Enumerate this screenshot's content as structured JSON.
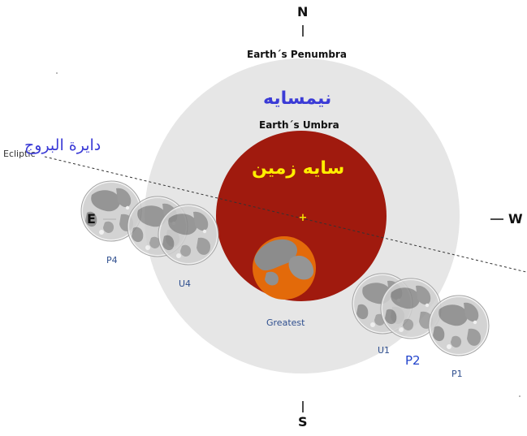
{
  "compass": {
    "north": "N",
    "south": "S",
    "east": "E",
    "west": "W"
  },
  "zones": {
    "penumbra_label": "Earth´s Penumbra",
    "penumbra_label_fa": "نیمسایه",
    "umbra_label": "Earth´s Umbra",
    "umbra_label_fa": "سایه زمین"
  },
  "ecliptic": {
    "label": "Ecliptic",
    "label_fa": "دایرة البروج"
  },
  "moon_positions": {
    "p4": "P4",
    "u4": "U4",
    "greatest": "Greatest",
    "u1": "U1",
    "p2": "P2",
    "p1": "P1"
  },
  "colors": {
    "penumbra": "#e6e6e6",
    "umbra": "#a01a0e",
    "greatest_moon": "#e36a0a",
    "center_mark": "#f7e000",
    "persian_blue": "#3b3bd6",
    "persian_yellow": "#ffee00",
    "phase_label": "#2f4f8f",
    "moon_light": "#d6d6d6",
    "moon_dark": "#7a7a7a"
  }
}
